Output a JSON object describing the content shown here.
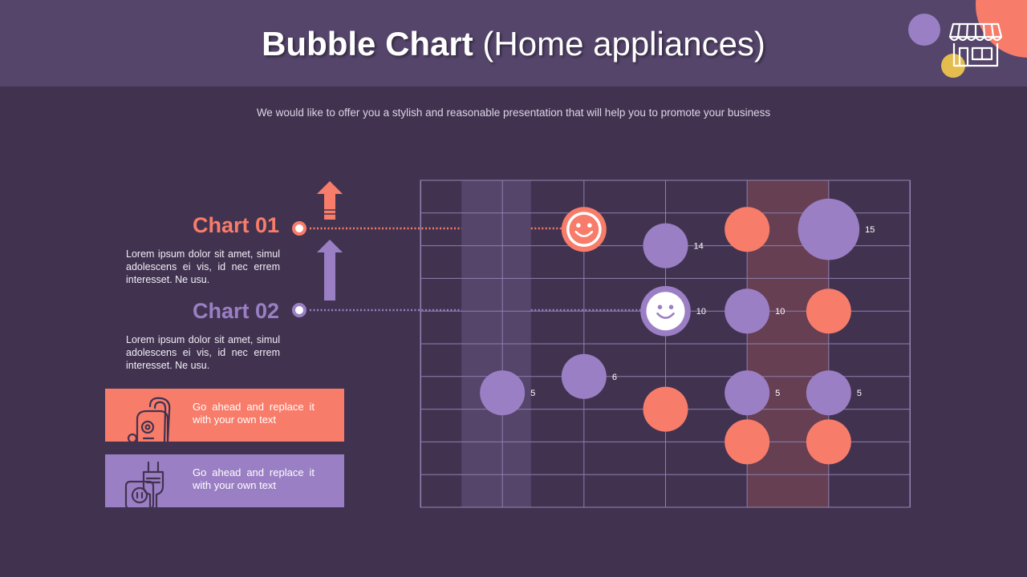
{
  "header": {
    "title_bold": "Bubble Chart",
    "title_rest": "(Home appliances)",
    "subtitle": "We would like to offer you a stylish and reasonable presentation that will help you to promote your business"
  },
  "legend": [
    {
      "label": "Chart 01",
      "desc": "Lorem ipsum dolor sit amet, simul adolescens ei vis, id nec errem interesset. Ne usu.",
      "color": "#f87c6a"
    },
    {
      "label": "Chart 02",
      "desc": "Lorem ipsum dolor sit amet, simul adolescens ei vis, id nec errem interesset. Ne usu.",
      "color": "#9b7fc4"
    }
  ],
  "cards": [
    {
      "text": "Go ahead and replace it with your own text",
      "color": "#f87c6a",
      "icon": "vacuum-cleaner-icon"
    },
    {
      "text": "Go ahead and replace it with your own text",
      "color": "#9b7fc4",
      "icon": "power-plug-icon"
    }
  ],
  "icons": {
    "header": "store-icon"
  },
  "colors": {
    "background": "#413350",
    "header": "#55456b",
    "coral": "#f87c6a",
    "purple": "#9b7fc4",
    "yellow": "#e5bd4e",
    "grid": "#8e7fae"
  },
  "chart_data": {
    "type": "bubble",
    "title": "Bubble Chart (Home appliances)",
    "x_range": [
      0,
      6
    ],
    "y_range": [
      0,
      10
    ],
    "highlight_x_bands": [
      [
        0.5,
        1.35
      ],
      [
        4,
        5
      ]
    ],
    "series": [
      {
        "name": "Chart 01",
        "color": "#f87c6a",
        "points": [
          {
            "x": 2,
            "y": 8.5,
            "size": 8,
            "label": "",
            "face": true
          },
          {
            "x": 4,
            "y": 8.5,
            "size": 8,
            "label": ""
          },
          {
            "x": 5,
            "y": 6,
            "size": 8,
            "label": ""
          },
          {
            "x": 3,
            "y": 3,
            "size": 8,
            "label": ""
          },
          {
            "x": 4,
            "y": 2,
            "size": 8,
            "label": ""
          },
          {
            "x": 5,
            "y": 2,
            "size": 8,
            "label": ""
          }
        ]
      },
      {
        "name": "Chart 02",
        "color": "#9b7fc4",
        "points": [
          {
            "x": 3,
            "y": 8,
            "size": 8,
            "label": "14"
          },
          {
            "x": 5,
            "y": 8.5,
            "size": 15,
            "label": "15"
          },
          {
            "x": 3,
            "y": 6,
            "size": 10,
            "label": "10",
            "face": true
          },
          {
            "x": 4,
            "y": 6,
            "size": 8,
            "label": "10"
          },
          {
            "x": 1,
            "y": 3.5,
            "size": 8,
            "label": "5"
          },
          {
            "x": 2,
            "y": 4,
            "size": 8,
            "label": "6"
          },
          {
            "x": 4,
            "y": 3.5,
            "size": 8,
            "label": "5"
          },
          {
            "x": 5,
            "y": 3.5,
            "size": 8,
            "label": "5"
          }
        ]
      }
    ],
    "connectors": [
      {
        "series": "Chart 01",
        "y": 8.5
      },
      {
        "series": "Chart 02",
        "y": 6
      }
    ]
  }
}
